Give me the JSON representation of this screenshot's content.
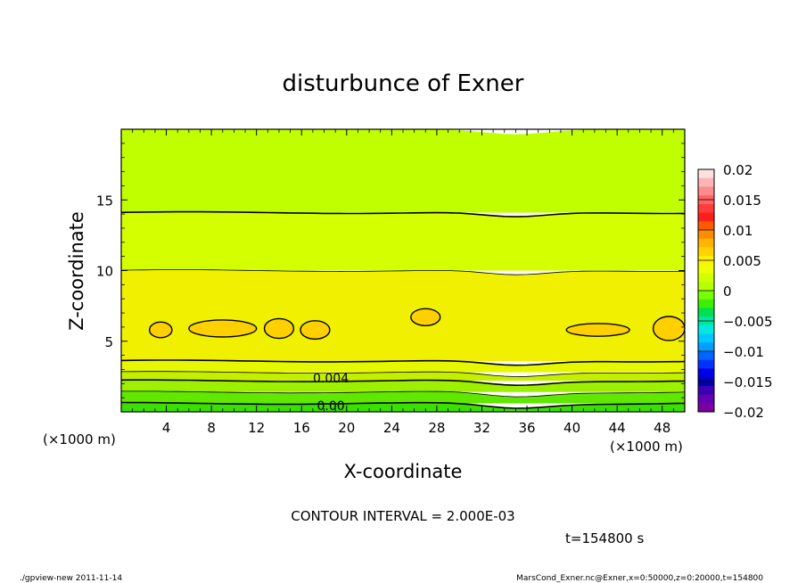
{
  "chart_data": {
    "type": "heatmap",
    "title": "disturbunce of Exner",
    "xlabel": "X-coordinate",
    "ylabel": "Z-coordinate",
    "x_unit_label": "(×1000 m)",
    "y_unit_label": "(×1000 m)",
    "xlim": [
      0,
      50
    ],
    "ylim": [
      0,
      20
    ],
    "x_ticks": [
      4,
      8,
      12,
      16,
      20,
      24,
      28,
      32,
      36,
      40,
      44,
      48
    ],
    "y_ticks": [
      5,
      10,
      15
    ],
    "grid": false,
    "colorbar": {
      "levels": [
        0.02,
        0.015,
        0.01,
        0.005,
        0,
        -0.005,
        -0.01,
        -0.015,
        -0.02
      ],
      "labels": [
        "0.02",
        "0.015",
        "0.01",
        "0.005",
        "0",
        "−0.005",
        "−0.01",
        "−0.015",
        "−0.02"
      ],
      "colors": [
        "#fde0e0",
        "#fcb4b4",
        "#ff8c8c",
        "#ff6464",
        "#ff3c3c",
        "#ff1e1e",
        "#ff5a00",
        "#ff8c00",
        "#ffb400",
        "#ffd200",
        "#fff000",
        "#f0ff00",
        "#d2ff00",
        "#b4ff00",
        "#78ff00",
        "#3cf000",
        "#00e050",
        "#00e8a0",
        "#00e8e0",
        "#00c8ff",
        "#00a0ff",
        "#0064ff",
        "#0032ff",
        "#0000e6",
        "#0000b4",
        "#3c00b4",
        "#6400b4",
        "#7800a0"
      ]
    },
    "bands": [
      {
        "z_range": [
          14.1,
          20
        ],
        "color": "#c0ff00"
      },
      {
        "z_range": [
          10,
          14.1
        ],
        "color": "#d4ff00"
      },
      {
        "z_range": [
          3.6,
          10
        ],
        "color": "#f0f000"
      },
      {
        "z_range": [
          2.8,
          3.6
        ],
        "color": "#e6f800"
      },
      {
        "z_range": [
          2.2,
          2.8
        ],
        "color": "#c4f000"
      },
      {
        "z_range": [
          1.4,
          2.2
        ],
        "color": "#9cf000"
      },
      {
        "z_range": [
          0.6,
          1.4
        ],
        "color": "#60e800"
      },
      {
        "z_range": [
          0,
          0.6
        ],
        "color": "#3ce000"
      }
    ],
    "contour_labels": [
      {
        "text": "0.004",
        "x": 18.6,
        "z": 2.4
      },
      {
        "text": "0.00",
        "x": 18.6,
        "z": 0.45
      }
    ],
    "cells": [
      {
        "x": 3.5,
        "z": 5.8,
        "rx": 1.0,
        "rz": 0.55,
        "value": 0.009
      },
      {
        "x": 9.0,
        "z": 5.9,
        "rx": 3.0,
        "rz": 0.6,
        "value": 0.009
      },
      {
        "x": 14.0,
        "z": 5.9,
        "rx": 1.3,
        "rz": 0.7,
        "value": 0.009
      },
      {
        "x": 17.2,
        "z": 5.8,
        "rx": 1.3,
        "rz": 0.65,
        "value": 0.009
      },
      {
        "x": 27.0,
        "z": 6.7,
        "rx": 1.3,
        "rz": 0.6,
        "value": 0.009
      },
      {
        "x": 42.3,
        "z": 5.8,
        "rx": 2.8,
        "rz": 0.45,
        "value": 0.009
      },
      {
        "x": 48.6,
        "z": 5.9,
        "rx": 1.4,
        "rz": 0.85,
        "value": 0.009
      }
    ]
  },
  "texts": {
    "contour_interval": "CONTOUR INTERVAL = 2.000E-03",
    "time": "t=154800 s",
    "footer_left": "./gpview-new   2011-11-14",
    "footer_right": "MarsCond_Exner.nc@Exner,x=0:50000,z=0:20000,t=154800"
  }
}
